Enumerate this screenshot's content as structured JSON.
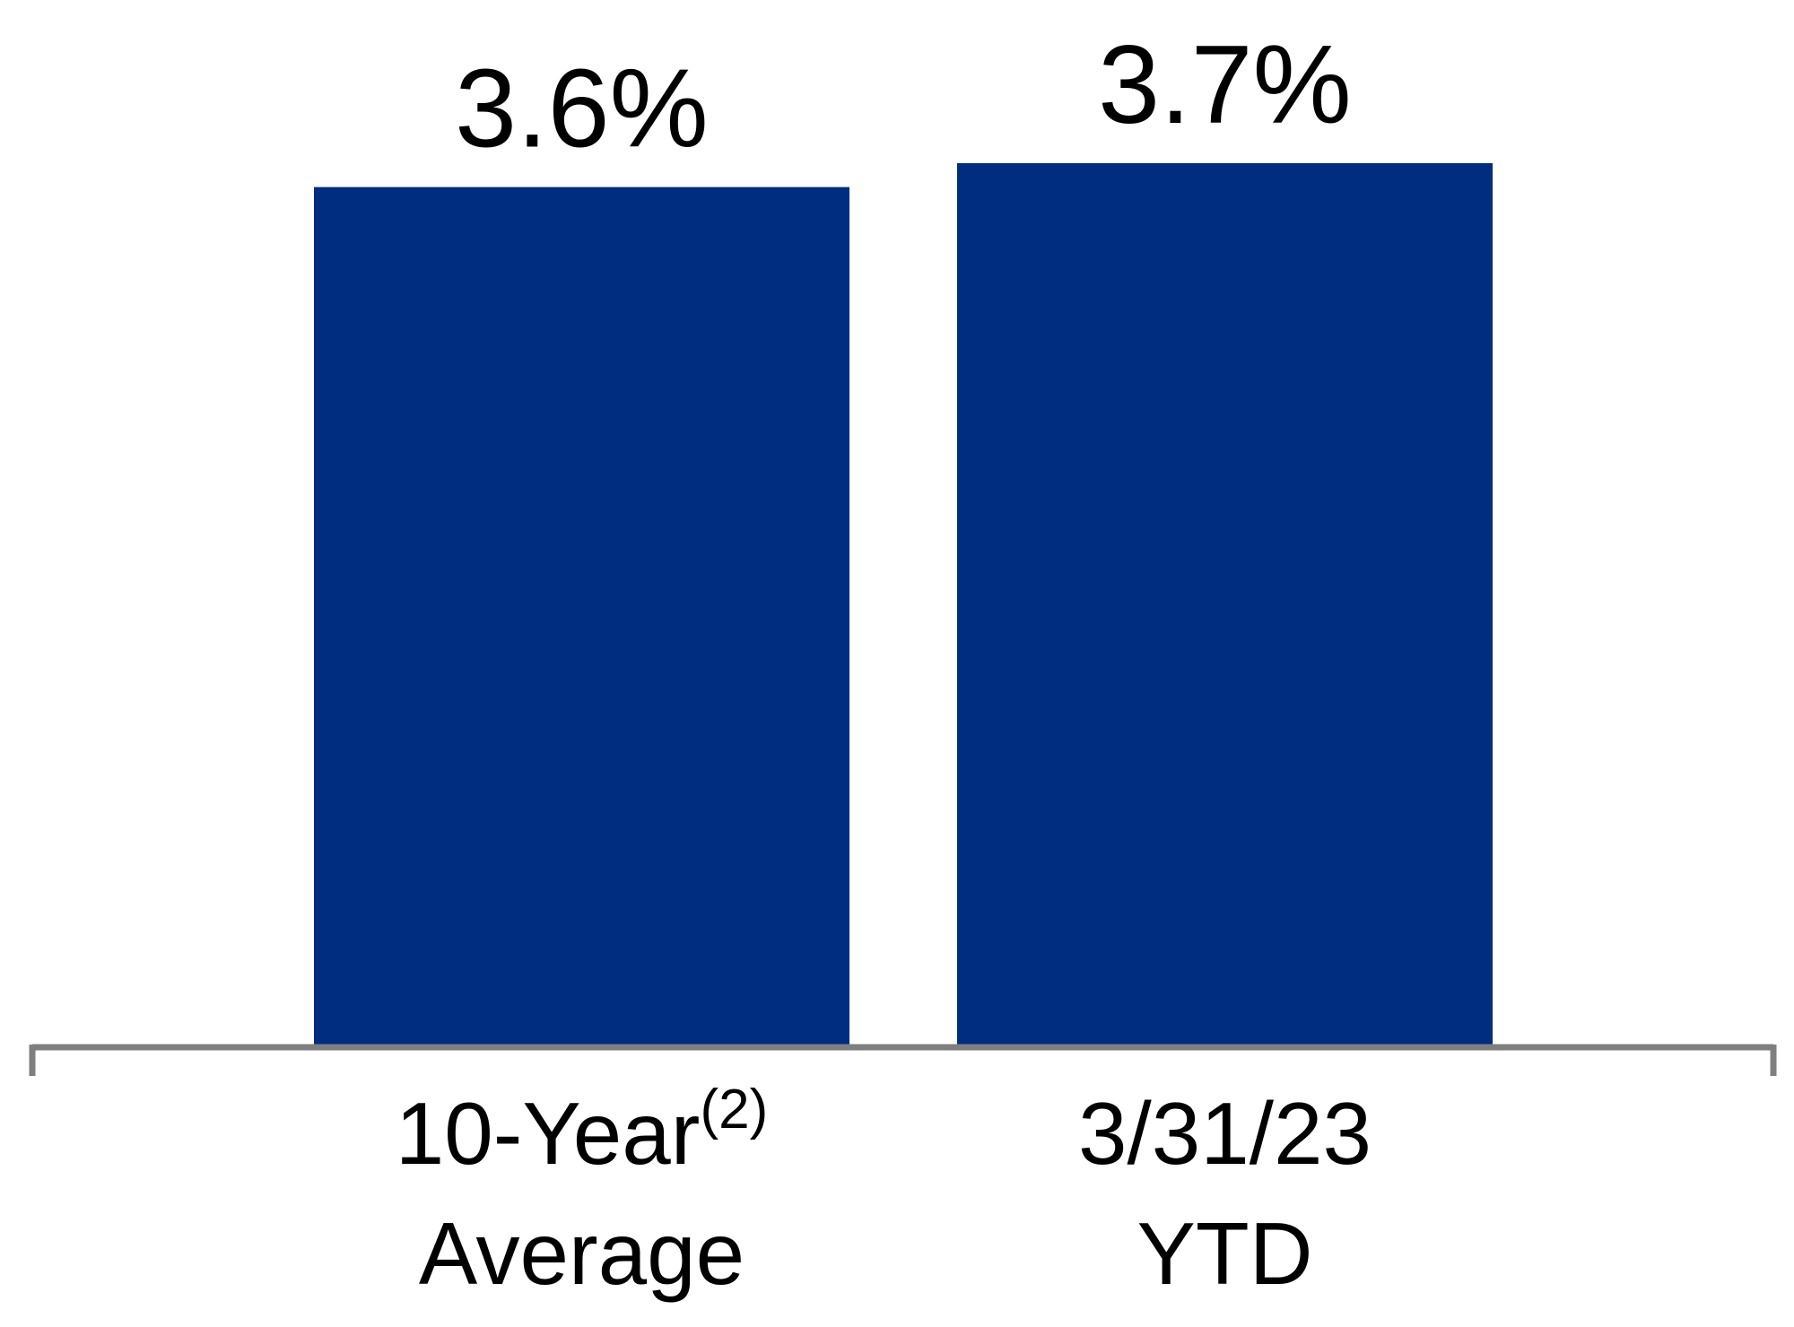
{
  "chart_data": {
    "type": "bar",
    "categories": [
      {
        "lines": [
          "10-Year",
          "Average"
        ],
        "superscript": "(2)"
      },
      {
        "lines": [
          "3/31/23",
          "YTD"
        ],
        "superscript": ""
      }
    ],
    "values": [
      3.6,
      3.7
    ],
    "value_labels": [
      "3.6%",
      "3.7%"
    ],
    "ylim": [
      0,
      3.7
    ],
    "grid": false,
    "legend": "none",
    "colors": {
      "bar": "#002D80",
      "axis": "#7F7F7F"
    }
  }
}
